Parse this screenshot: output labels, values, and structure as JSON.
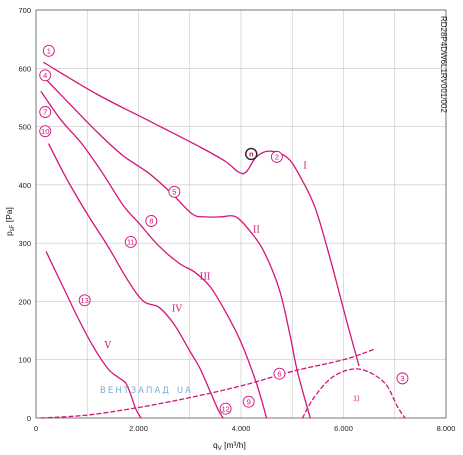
{
  "chart_data": {
    "type": "line",
    "xlabel": "q",
    "xlabel_sub": "V",
    "xlabel_unit": " [m³/h]",
    "ylabel": "p",
    "ylabel_sub": "sF",
    "ylabel_unit": " [Pa]",
    "xlim": [
      0,
      8000
    ],
    "ylim": [
      0,
      700
    ],
    "x_ticks": [
      0,
      2000,
      4000,
      6000,
      8000
    ],
    "x_tick_labels": [
      "0",
      "2.000",
      "4.000",
      "6.000",
      "8.000"
    ],
    "y_ticks": [
      0,
      100,
      200,
      300,
      400,
      500,
      600,
      700
    ],
    "y_tick_labels": [
      "0",
      "100",
      "200",
      "300",
      "400",
      "500",
      "600",
      "700"
    ],
    "grid": true,
    "side_label": "RD28P4DW6L1RV001/002",
    "watermark": "ВЕНТЗАПАД",
    "watermark_suffix": "UA",
    "colors": {
      "curve": "#d3157a",
      "grid": "#c8c8c8",
      "watermark": "#6ba6cf"
    },
    "series": [
      {
        "name": "I",
        "style": "solid",
        "x": [
          150,
          1200,
          2200,
          3200,
          3700,
          3950,
          4100,
          4300,
          4550,
          4900,
          5150,
          5450,
          5750,
          6050,
          6300
        ],
        "y": [
          610,
          555,
          510,
          465,
          440,
          422,
          422,
          448,
          458,
          447,
          415,
          360,
          270,
          170,
          90
        ]
      },
      {
        "name": "II",
        "style": "solid",
        "x": [
          150,
          700,
          1200,
          1700,
          2200,
          2650,
          3050,
          3300,
          3600,
          3900,
          4200,
          4450,
          4750,
          4950,
          5100,
          5350
        ],
        "y": [
          585,
          535,
          490,
          450,
          420,
          385,
          350,
          345,
          345,
          345,
          318,
          285,
          220,
          145,
          80,
          0
        ]
      },
      {
        "name": "III",
        "style": "solid",
        "x": [
          100,
          500,
          900,
          1300,
          1700,
          2000,
          2400,
          2800,
          3100,
          3400,
          3700,
          4000,
          4300,
          4500
        ],
        "y": [
          560,
          510,
          470,
          420,
          365,
          335,
          295,
          265,
          250,
          225,
          182,
          130,
          60,
          0
        ]
      },
      {
        "name": "IV",
        "style": "solid",
        "x": [
          250,
          600,
          1000,
          1400,
          1800,
          2100,
          2400,
          2700,
          3000,
          3200,
          3400,
          3550,
          3650
        ],
        "y": [
          470,
          410,
          350,
          295,
          235,
          200,
          190,
          160,
          115,
          85,
          45,
          15,
          0
        ]
      },
      {
        "name": "V",
        "style": "solid",
        "x": [
          200,
          500,
          800,
          1100,
          1400,
          1600,
          1750,
          1850,
          1950,
          2050
        ],
        "y": [
          285,
          230,
          175,
          125,
          85,
          70,
          60,
          40,
          15,
          0
        ]
      },
      {
        "name": "",
        "style": "dashed",
        "x": [
          100,
          1000,
          2000,
          3000,
          4000,
          5000,
          6000,
          6600
        ],
        "y": [
          0,
          5,
          18,
          35,
          55,
          80,
          100,
          118
        ]
      },
      {
        "name": "",
        "style": "dashed",
        "x": [
          5200,
          5400,
          5700,
          6000,
          6300,
          6600,
          6850,
          7050,
          7200
        ],
        "y": [
          0,
          32,
          64,
          80,
          84,
          74,
          55,
          20,
          0
        ]
      }
    ],
    "markers": [
      {
        "label": "1",
        "x": 250,
        "y": 630
      },
      {
        "label": "4",
        "x": 180,
        "y": 588
      },
      {
        "label": "7",
        "x": 180,
        "y": 525
      },
      {
        "label": "10",
        "x": 180,
        "y": 492
      },
      {
        "label": "5",
        "x": 2700,
        "y": 388
      },
      {
        "label": "8",
        "x": 2250,
        "y": 338
      },
      {
        "label": "11",
        "x": 1850,
        "y": 302
      },
      {
        "label": "13",
        "x": 950,
        "y": 202
      },
      {
        "label": "2",
        "x": 4700,
        "y": 448
      },
      {
        "label": "n",
        "x": 4200,
        "y": 453
      },
      {
        "label": "6",
        "x": 4750,
        "y": 76
      },
      {
        "label": "3",
        "x": 7150,
        "y": 68
      },
      {
        "label": "9",
        "x": 4150,
        "y": 28
      },
      {
        "label": "12",
        "x": 3700,
        "y": 16
      }
    ],
    "roman_labels": [
      {
        "text": "I",
        "x": 5250,
        "y": 428
      },
      {
        "text": "II",
        "x": 4300,
        "y": 318
      },
      {
        "text": "III",
        "x": 3300,
        "y": 238
      },
      {
        "text": "IV",
        "x": 2750,
        "y": 183
      },
      {
        "text": "V",
        "x": 1400,
        "y": 120
      }
    ],
    "notes": [
      {
        "text": "1)",
        "x": 6250,
        "y": 30
      }
    ]
  }
}
